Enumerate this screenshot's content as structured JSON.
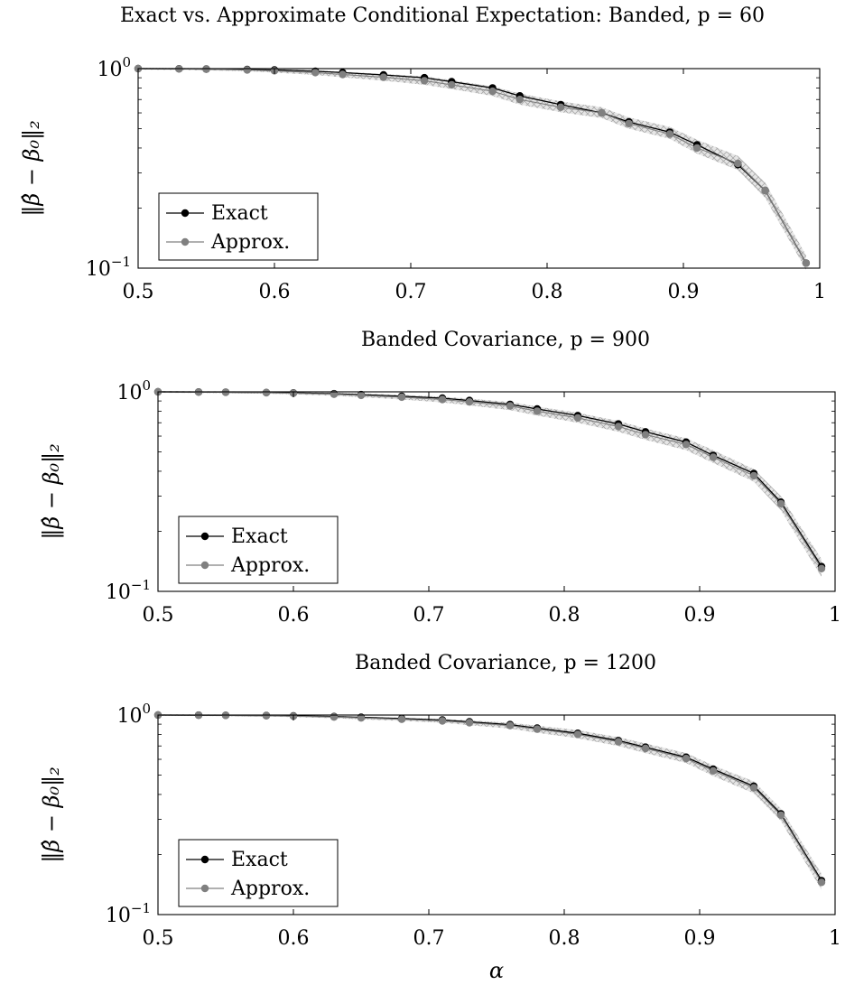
{
  "chart_data": [
    {
      "type": "line",
      "title": "Exact vs. Approximate Conditional Expectation: Banded, p = 60",
      "xlabel": "",
      "ylabel": "‖β̂ − β₀‖₂",
      "xlim": [
        0.5,
        1.0
      ],
      "ylim": [
        0.1,
        1.0
      ],
      "yscale": "log",
      "xticks": [
        "0.5",
        "0.6",
        "0.7",
        "0.8",
        "0.9",
        "1"
      ],
      "yticks": [
        {
          "base": "10",
          "exp": "0",
          "value": 1.0
        },
        {
          "base": "10",
          "exp": "−1",
          "value": 0.1
        }
      ],
      "grid": "horizontal dashed at major ticks",
      "legend": {
        "position": "bottom-left",
        "entries": [
          "Exact",
          "Approx."
        ]
      },
      "x": [
        0.5,
        0.53,
        0.55,
        0.58,
        0.6,
        0.63,
        0.65,
        0.68,
        0.71,
        0.73,
        0.76,
        0.78,
        0.81,
        0.84,
        0.86,
        0.89,
        0.91,
        0.94,
        0.96,
        0.99
      ],
      "series": [
        {
          "name": "Exact",
          "color": "#000000",
          "values": [
            1.0,
            0.998,
            0.995,
            0.99,
            0.985,
            0.97,
            0.955,
            0.93,
            0.9,
            0.86,
            0.8,
            0.73,
            0.66,
            0.6,
            0.54,
            0.48,
            0.415,
            0.33,
            0.245,
            0.106
          ]
        },
        {
          "name": "Approx.",
          "color": "#808080",
          "values": [
            1.0,
            0.997,
            0.993,
            0.985,
            0.975,
            0.955,
            0.935,
            0.905,
            0.87,
            0.83,
            0.77,
            0.7,
            0.64,
            0.6,
            0.53,
            0.47,
            0.4,
            0.335,
            0.245,
            0.106
          ],
          "band_lower": [
            0.99,
            0.985,
            0.98,
            0.97,
            0.955,
            0.93,
            0.905,
            0.87,
            0.83,
            0.79,
            0.73,
            0.66,
            0.605,
            0.565,
            0.5,
            0.445,
            0.375,
            0.31,
            0.225,
            0.098
          ],
          "band_upper": [
            1.01,
            1.008,
            1.005,
            1.0,
            0.995,
            0.98,
            0.965,
            0.94,
            0.915,
            0.875,
            0.815,
            0.75,
            0.685,
            0.64,
            0.57,
            0.51,
            0.44,
            0.365,
            0.268,
            0.116
          ]
        }
      ]
    },
    {
      "type": "line",
      "title": "Banded Covariance, p = 900",
      "xlabel": "",
      "ylabel": "‖β̂ − β₀‖₂",
      "xlim": [
        0.5,
        1.0
      ],
      "ylim": [
        0.1,
        1.0
      ],
      "yscale": "log",
      "xticks": [
        "0.5",
        "0.6",
        "0.7",
        "0.8",
        "0.9",
        "1"
      ],
      "yticks": [
        {
          "base": "10",
          "exp": "0",
          "value": 1.0
        },
        {
          "base": "10",
          "exp": "−1",
          "value": 0.1
        }
      ],
      "grid": "horizontal dashed at major ticks",
      "legend": {
        "position": "bottom-left",
        "entries": [
          "Exact",
          "Approx."
        ]
      },
      "x": [
        0.5,
        0.53,
        0.55,
        0.58,
        0.6,
        0.63,
        0.65,
        0.68,
        0.71,
        0.73,
        0.76,
        0.78,
        0.81,
        0.84,
        0.86,
        0.89,
        0.91,
        0.94,
        0.96,
        0.99
      ],
      "series": [
        {
          "name": "Exact",
          "color": "#000000",
          "values": [
            1.0,
            0.998,
            0.996,
            0.992,
            0.988,
            0.978,
            0.968,
            0.95,
            0.93,
            0.905,
            0.865,
            0.82,
            0.76,
            0.69,
            0.63,
            0.56,
            0.48,
            0.39,
            0.28,
            0.133
          ]
        },
        {
          "name": "Approx.",
          "color": "#808080",
          "values": [
            1.0,
            0.997,
            0.995,
            0.99,
            0.985,
            0.972,
            0.96,
            0.94,
            0.915,
            0.89,
            0.85,
            0.8,
            0.74,
            0.67,
            0.61,
            0.545,
            0.47,
            0.38,
            0.275,
            0.13
          ],
          "band_lower": [
            0.99,
            0.987,
            0.985,
            0.978,
            0.972,
            0.955,
            0.94,
            0.915,
            0.885,
            0.855,
            0.81,
            0.76,
            0.7,
            0.63,
            0.575,
            0.51,
            0.44,
            0.355,
            0.255,
            0.118
          ],
          "band_upper": [
            1.01,
            1.008,
            1.006,
            1.002,
            0.998,
            0.99,
            0.98,
            0.965,
            0.945,
            0.925,
            0.89,
            0.845,
            0.785,
            0.715,
            0.655,
            0.585,
            0.51,
            0.41,
            0.3,
            0.145
          ]
        }
      ]
    },
    {
      "type": "line",
      "title": "Banded Covariance, p = 1200",
      "xlabel": "α",
      "ylabel": "‖β̂ − β₀‖₂",
      "xlim": [
        0.5,
        1.0
      ],
      "ylim": [
        0.1,
        1.0
      ],
      "yscale": "log",
      "xticks": [
        "0.5",
        "0.6",
        "0.7",
        "0.8",
        "0.9",
        "1"
      ],
      "yticks": [
        {
          "base": "10",
          "exp": "0",
          "value": 1.0
        },
        {
          "base": "10",
          "exp": "−1",
          "value": 0.1
        }
      ],
      "grid": "horizontal dashed at major ticks",
      "legend": {
        "position": "bottom-left",
        "entries": [
          "Exact",
          "Approx."
        ]
      },
      "x": [
        0.5,
        0.53,
        0.55,
        0.58,
        0.6,
        0.63,
        0.65,
        0.68,
        0.71,
        0.73,
        0.76,
        0.78,
        0.81,
        0.84,
        0.86,
        0.89,
        0.91,
        0.94,
        0.96,
        0.99
      ],
      "series": [
        {
          "name": "Exact",
          "color": "#000000",
          "values": [
            1.0,
            0.999,
            0.997,
            0.994,
            0.99,
            0.982,
            0.974,
            0.96,
            0.944,
            0.925,
            0.895,
            0.86,
            0.81,
            0.745,
            0.69,
            0.615,
            0.535,
            0.44,
            0.32,
            0.148
          ]
        },
        {
          "name": "Approx.",
          "color": "#808080",
          "values": [
            1.0,
            0.998,
            0.996,
            0.992,
            0.987,
            0.977,
            0.967,
            0.952,
            0.935,
            0.915,
            0.885,
            0.85,
            0.8,
            0.735,
            0.68,
            0.605,
            0.525,
            0.432,
            0.315,
            0.145
          ],
          "band_lower": [
            0.992,
            0.99,
            0.987,
            0.982,
            0.976,
            0.964,
            0.952,
            0.935,
            0.915,
            0.89,
            0.855,
            0.815,
            0.765,
            0.7,
            0.645,
            0.575,
            0.495,
            0.405,
            0.295,
            0.133
          ],
          "band_upper": [
            1.008,
            1.007,
            1.005,
            1.002,
            0.998,
            0.99,
            0.982,
            0.97,
            0.955,
            0.94,
            0.915,
            0.885,
            0.84,
            0.775,
            0.72,
            0.645,
            0.56,
            0.465,
            0.34,
            0.16
          ]
        }
      ]
    }
  ]
}
